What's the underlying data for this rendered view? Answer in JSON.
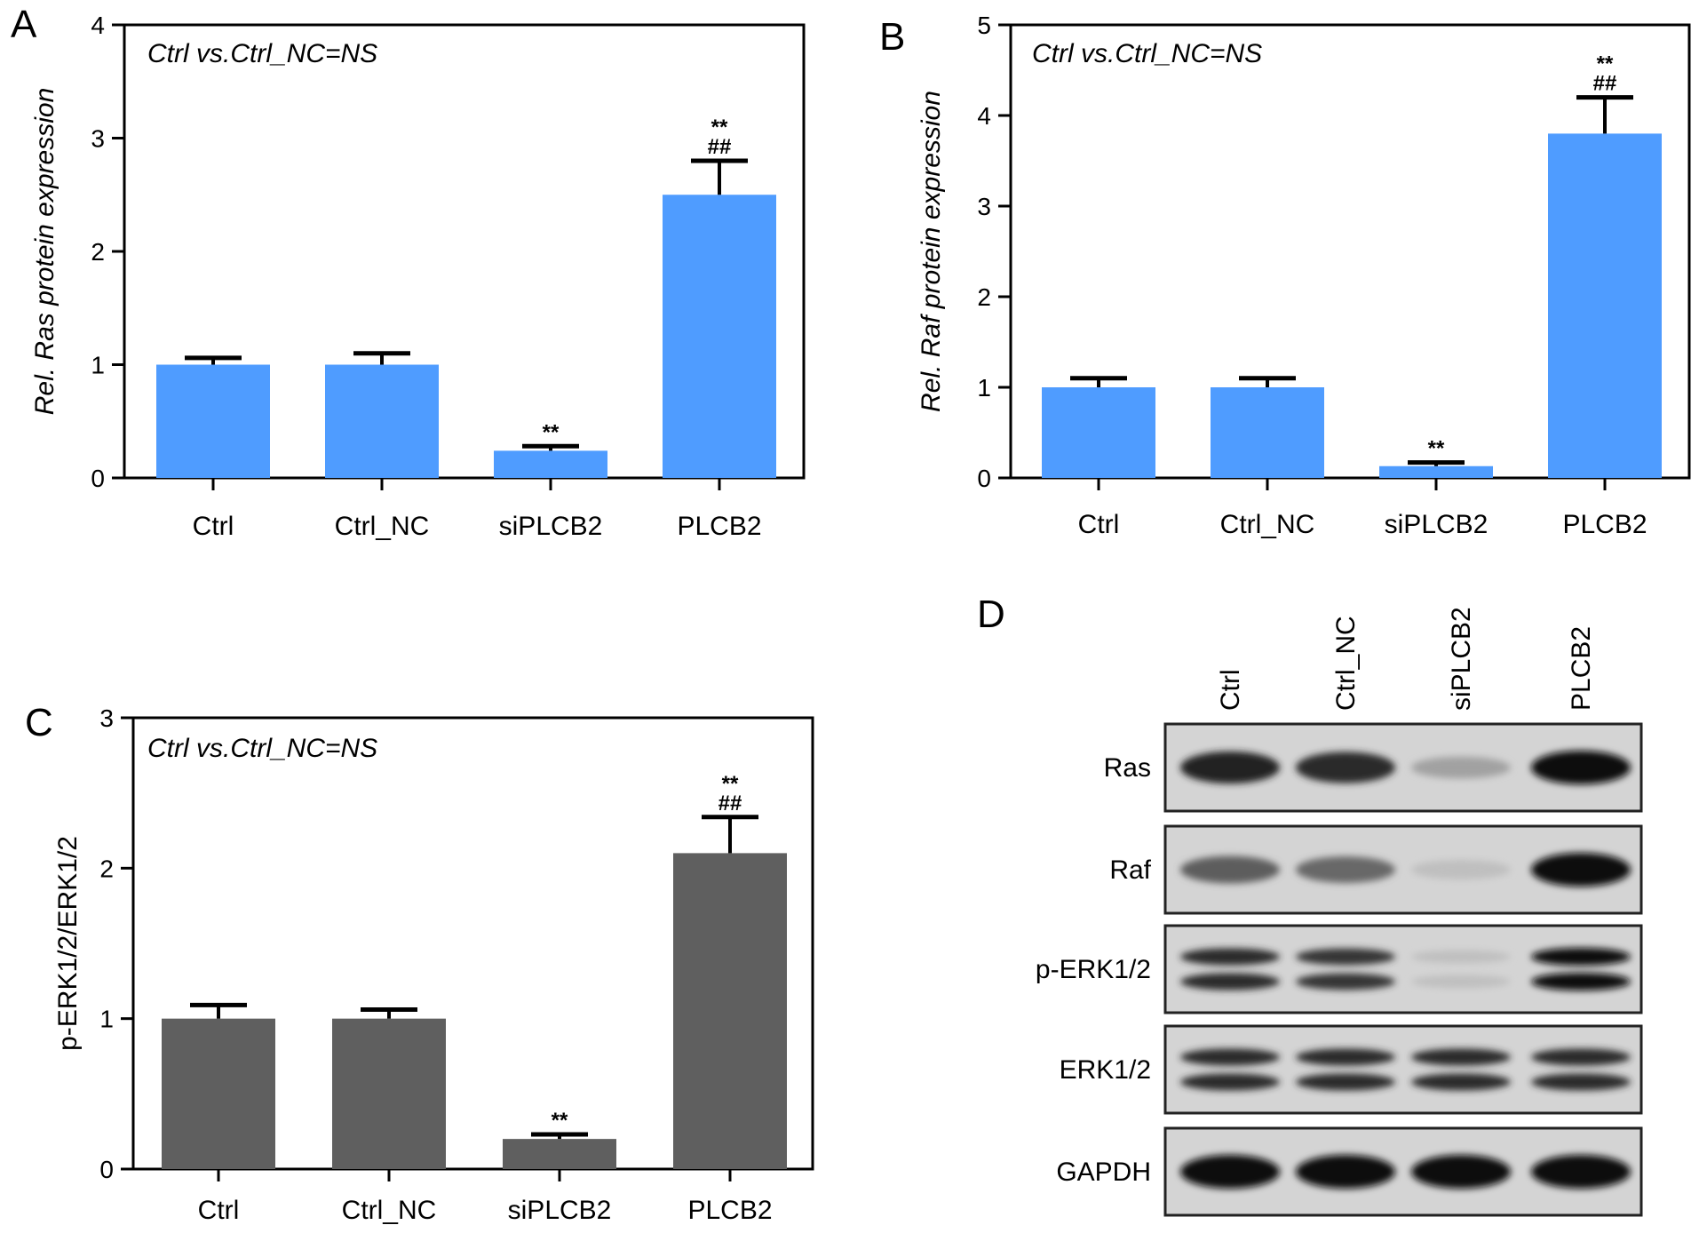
{
  "chart_data": [
    {
      "panel": "A",
      "type": "bar",
      "categories": [
        "Ctrl",
        "Ctrl_NC",
        "siPLCB2",
        "PLCB2"
      ],
      "values": [
        1.0,
        1.0,
        0.24,
        2.5
      ],
      "errors": [
        0.06,
        0.1,
        0.04,
        0.3
      ],
      "significance": [
        "",
        "",
        "**",
        "**\n##"
      ],
      "ylabel": "Rel. Ras protein expression",
      "ylim": [
        0,
        4
      ],
      "yticks": [
        "0",
        "1",
        "2",
        "3",
        "4"
      ],
      "annotation": "Ctrl vs.Ctrl_NC=NS",
      "bar_color": "#4f9cff"
    },
    {
      "panel": "B",
      "type": "bar",
      "categories": [
        "Ctrl",
        "Ctrl_NC",
        "siPLCB2",
        "PLCB2"
      ],
      "values": [
        1.0,
        1.0,
        0.13,
        3.8
      ],
      "errors": [
        0.1,
        0.1,
        0.04,
        0.4
      ],
      "significance": [
        "",
        "",
        "**",
        "**\n##"
      ],
      "ylabel": "Rel. Raf protein expression",
      "ylim": [
        0,
        5
      ],
      "yticks": [
        "0",
        "1",
        "2",
        "3",
        "4",
        "5"
      ],
      "annotation": "Ctrl vs.Ctrl_NC=NS",
      "bar_color": "#4f9cff"
    },
    {
      "panel": "C",
      "type": "bar",
      "categories": [
        "Ctrl",
        "Ctrl_NC",
        "siPLCB2",
        "PLCB2"
      ],
      "values": [
        1.0,
        1.0,
        0.2,
        2.1
      ],
      "errors": [
        0.09,
        0.06,
        0.03,
        0.24
      ],
      "significance": [
        "",
        "",
        "**",
        "**\n##"
      ],
      "ylabel": "p-ERK1/2/ERK1/2",
      "ylim": [
        0,
        3
      ],
      "yticks": [
        "0",
        "1",
        "2",
        "3"
      ],
      "annotation": "Ctrl vs.Ctrl_NC=NS",
      "bar_color": "#5f5f5f"
    }
  ],
  "blot": {
    "panel": "D",
    "lanes": [
      "Ctrl",
      "Ctrl_NC",
      "siPLCB2",
      "PLCB2"
    ],
    "rows": [
      {
        "label": "Ras",
        "bands": 1,
        "intensity": [
          0.9,
          0.85,
          0.25,
          1.0
        ]
      },
      {
        "label": "Raf",
        "bands": 1,
        "intensity": [
          0.6,
          0.55,
          0.1,
          1.0
        ]
      },
      {
        "label": "p-ERK1/2",
        "bands": 2,
        "intensity": [
          0.85,
          0.8,
          0.1,
          1.0
        ]
      },
      {
        "label": "ERK1/2",
        "bands": 2,
        "intensity": [
          0.85,
          0.85,
          0.85,
          0.85
        ]
      },
      {
        "label": "GAPDH",
        "bands": 1,
        "intensity": [
          1.0,
          1.0,
          1.0,
          1.0
        ]
      }
    ]
  }
}
